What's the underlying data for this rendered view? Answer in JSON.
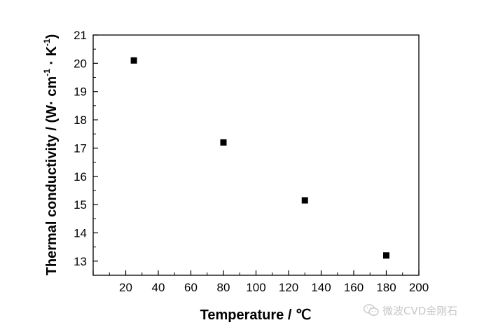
{
  "chart_data": {
    "type": "scatter",
    "title": "",
    "xlabel": "Temperature / ℃",
    "ylabel": "Thermal conductivity / (W· cm-1 · K-1)",
    "ylabel_parts": {
      "main": "Thermal conductivity / (W· cm",
      "sup1": "-1",
      "mid": " · K",
      "sup2": "-1",
      "end": ")"
    },
    "xlim": [
      0,
      200
    ],
    "ylim": [
      12.5,
      21
    ],
    "xticks": [
      "20",
      "40",
      "60",
      "80",
      "100",
      "120",
      "140",
      "160",
      "180",
      "200"
    ],
    "yticks": [
      "13",
      "14",
      "15",
      "16",
      "17",
      "18",
      "19",
      "20",
      "21"
    ],
    "grid": false,
    "marker": "square",
    "color": "#000000",
    "x": [
      25,
      80,
      130,
      180
    ],
    "y": [
      20.1,
      17.2,
      15.15,
      13.2
    ]
  },
  "watermark": {
    "icon": "wechat-icon",
    "text": "微波CVD金刚石"
  }
}
